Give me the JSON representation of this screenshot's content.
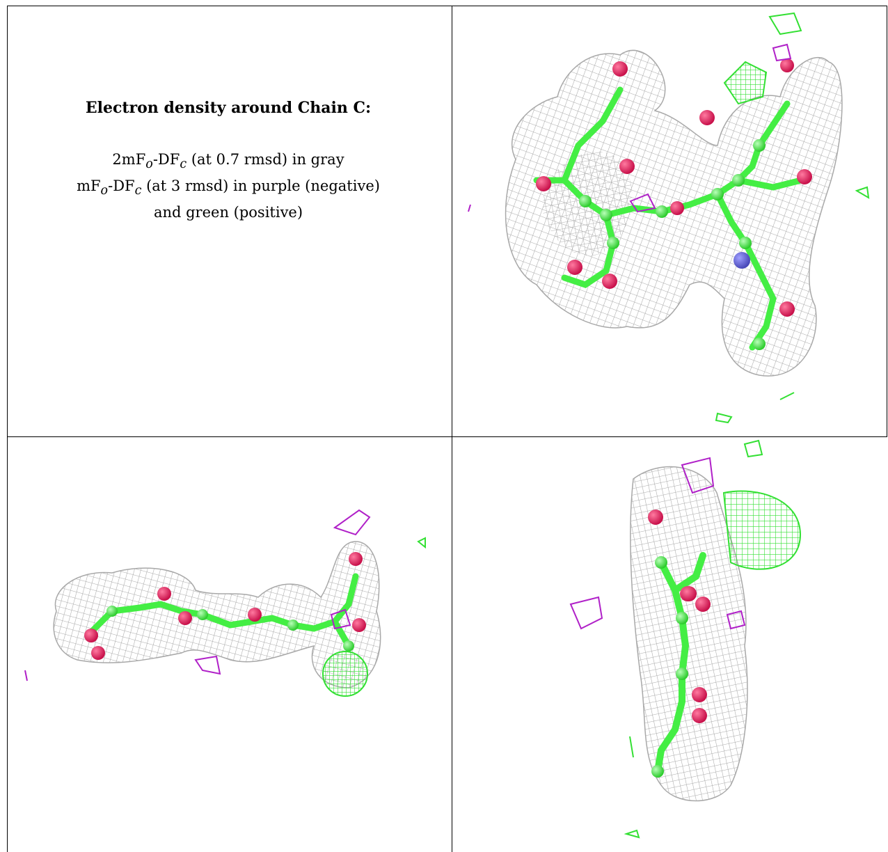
{
  "caption": {
    "title": "Electron density around Chain C:",
    "line1_a": "2mF",
    "line1_sub_o": "o",
    "line1_b": "-DF",
    "line1_sub_c": "c",
    "line1_rest": " (at 0.7 rmsd) in gray",
    "line2_a": "mF",
    "line2_sub_o": "o",
    "line2_b": "-DF",
    "line2_sub_c": "c",
    "line2_rest": " (at 3 rmsd) in purple (negative)",
    "line3": "and green (positive)"
  },
  "colors": {
    "mesh_gray": "#a8a8a8",
    "negative_purple": "#b020c8",
    "positive_green": "#33e033",
    "carbon_green": "#44ee44",
    "oxygen_red": "#e0205a",
    "nitrogen_blue": "#6060d0"
  },
  "panels": [
    {
      "name": "top-right",
      "view": "front"
    },
    {
      "name": "bottom-left",
      "view": "side"
    },
    {
      "name": "bottom-right",
      "view": "edge"
    }
  ]
}
